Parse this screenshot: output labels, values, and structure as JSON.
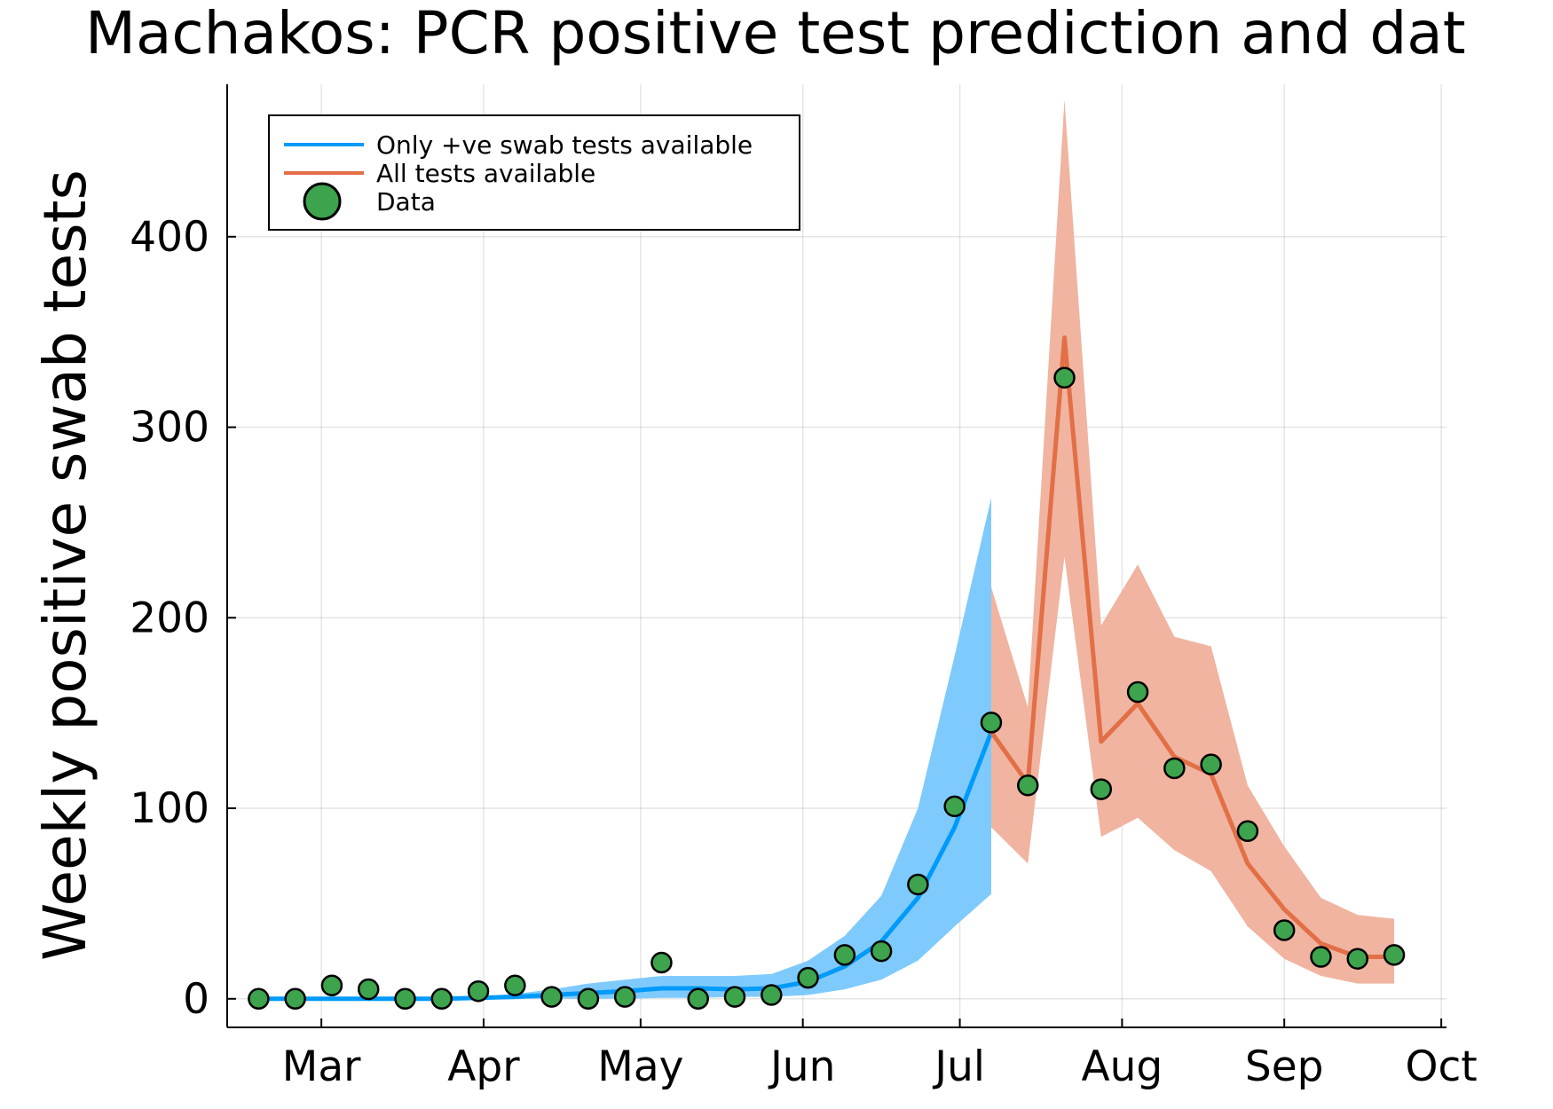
{
  "chart_data": {
    "type": "line",
    "title": "Machakos: PCR positive test prediction and dat",
    "xlabel": "",
    "ylabel": "Weekly positive swab tests",
    "xlim": [
      "2020-02-12",
      "2020-10-02"
    ],
    "ylim": [
      -15,
      480
    ],
    "x_ticks": [
      {
        "date": "2020-03-01",
        "label": "Mar"
      },
      {
        "date": "2020-04-01",
        "label": "Apr"
      },
      {
        "date": "2020-05-01",
        "label": "May"
      },
      {
        "date": "2020-06-01",
        "label": "Jun"
      },
      {
        "date": "2020-07-01",
        "label": "Jul"
      },
      {
        "date": "2020-08-01",
        "label": "Aug"
      },
      {
        "date": "2020-09-01",
        "label": "Sep"
      },
      {
        "date": "2020-10-01",
        "label": "Oct"
      }
    ],
    "y_ticks": [
      0,
      100,
      200,
      300,
      400
    ],
    "grid": true,
    "legend_position": "top-left",
    "series": [
      {
        "name": "Only +ve swab tests available",
        "color": "#009af9",
        "band_color": "#7fcafd",
        "x": [
          "2020-02-18",
          "2020-02-25",
          "2020-03-03",
          "2020-03-10",
          "2020-03-17",
          "2020-03-24",
          "2020-03-31",
          "2020-04-07",
          "2020-04-14",
          "2020-04-21",
          "2020-04-28",
          "2020-05-05",
          "2020-05-12",
          "2020-05-19",
          "2020-05-26",
          "2020-06-02",
          "2020-06-09",
          "2020-06-16",
          "2020-06-23",
          "2020-06-30",
          "2020-07-07"
        ],
        "values": [
          0,
          0,
          0,
          0,
          0,
          0,
          0.5,
          1,
          2,
          3,
          4,
          5.5,
          5.5,
          5,
          5.5,
          9,
          17,
          30,
          53,
          90,
          140
        ],
        "lower": [
          0,
          0,
          0,
          0,
          0,
          0,
          0,
          0,
          0,
          0,
          0,
          0.5,
          0.5,
          1,
          1,
          2,
          5,
          10,
          20,
          38,
          55
        ],
        "upper": [
          0,
          0,
          0.5,
          0.5,
          0.5,
          1,
          1.5,
          2.5,
          5,
          8,
          10,
          12,
          12,
          12,
          13,
          20,
          33,
          54,
          100,
          180,
          263
        ]
      },
      {
        "name": "All tests available",
        "color": "#e26f46",
        "band_color": "#f0b4a0",
        "x": [
          "2020-07-07",
          "2020-07-14",
          "2020-07-21",
          "2020-07-28",
          "2020-08-04",
          "2020-08-11",
          "2020-08-18",
          "2020-08-25",
          "2020-09-01",
          "2020-09-08",
          "2020-09-15",
          "2020-09-22"
        ],
        "values": [
          140,
          113,
          347,
          135,
          155,
          127,
          118,
          71,
          47,
          29,
          22,
          22
        ],
        "lower": [
          90,
          71,
          232,
          85,
          95,
          78,
          67,
          38,
          21,
          12,
          8,
          8
        ],
        "upper": [
          216,
          153,
          472,
          196,
          228,
          190,
          185,
          112,
          80,
          53,
          44,
          42
        ]
      },
      {
        "name": "Data",
        "type": "scatter",
        "color": "#3da44d",
        "x": [
          "2020-02-18",
          "2020-02-25",
          "2020-03-03",
          "2020-03-10",
          "2020-03-17",
          "2020-03-24",
          "2020-03-31",
          "2020-04-07",
          "2020-04-14",
          "2020-04-21",
          "2020-04-28",
          "2020-05-05",
          "2020-05-12",
          "2020-05-19",
          "2020-05-26",
          "2020-06-02",
          "2020-06-09",
          "2020-06-16",
          "2020-06-23",
          "2020-06-30",
          "2020-07-07",
          "2020-07-14",
          "2020-07-21",
          "2020-07-28",
          "2020-08-04",
          "2020-08-11",
          "2020-08-18",
          "2020-08-25",
          "2020-09-01",
          "2020-09-08",
          "2020-09-15",
          "2020-09-22"
        ],
        "values": [
          0,
          0,
          7,
          5,
          0,
          0,
          4,
          7,
          1,
          0,
          1,
          19,
          0,
          1,
          2,
          11,
          23,
          25,
          60,
          101,
          145,
          112,
          326,
          110,
          161,
          121,
          123,
          88,
          36,
          22,
          21,
          23
        ]
      }
    ]
  }
}
